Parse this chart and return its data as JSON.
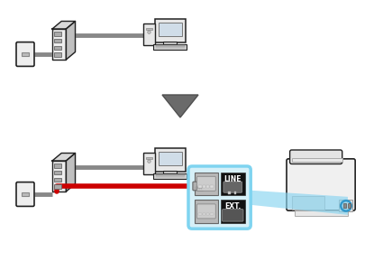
{
  "bg_color": "#ffffff",
  "gray_cable": "#888888",
  "dark": "#222222",
  "red_cable": "#cc0000",
  "cyan_panel": "#7fd4f0",
  "cyan_fill": "#d6f0f8",
  "arrow_fill": "#707070",
  "arrow_edge": "#555555",
  "figsize": [
    4.25,
    3.0
  ],
  "dpi": 100,
  "label_line": "LINE",
  "label_ext": "EXT."
}
